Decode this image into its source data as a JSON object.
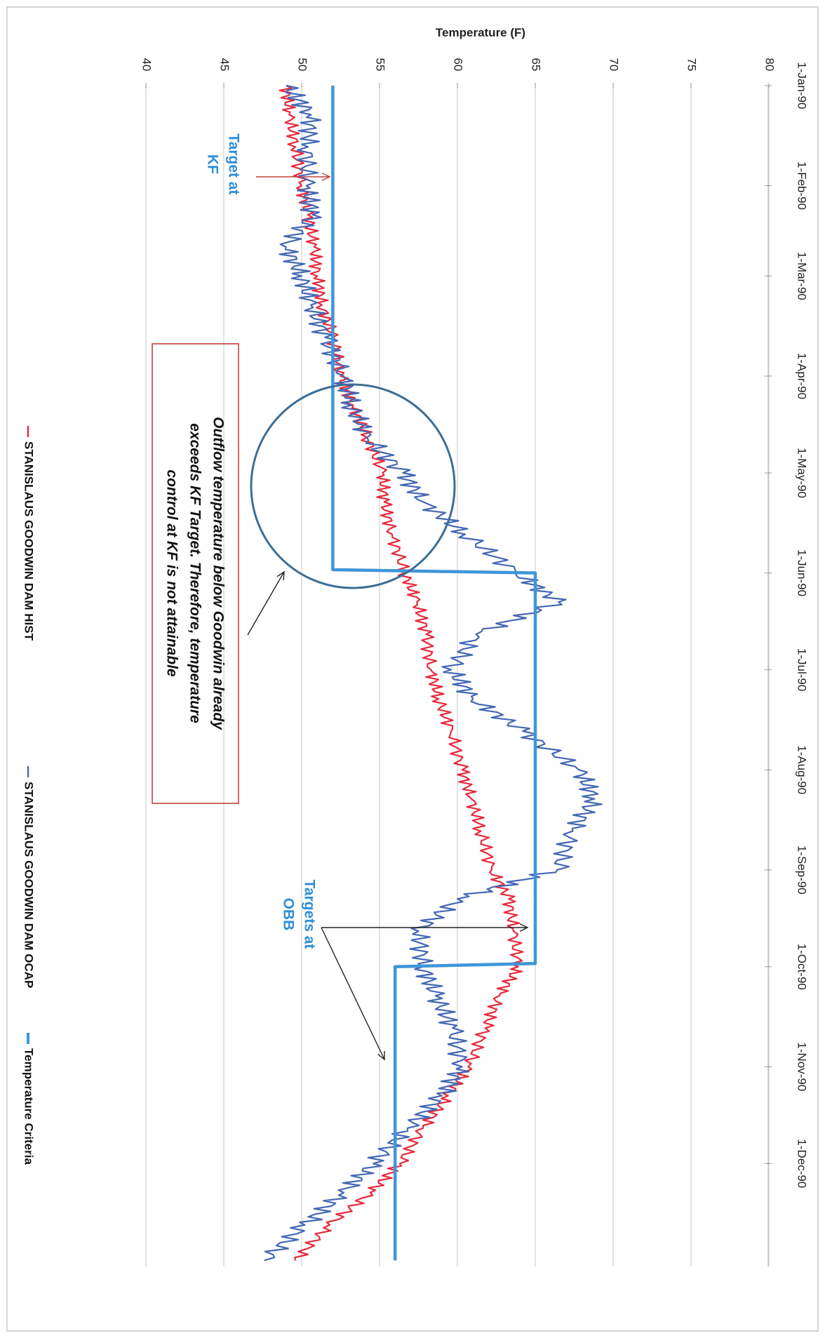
{
  "chart_data": {
    "type": "line",
    "orientation": "rotated-90-clockwise",
    "title": "",
    "ylabel": "Temperature (F)",
    "xlabel": "",
    "ylim": [
      40,
      80
    ],
    "y_ticks": [
      "40",
      "45",
      "50",
      "55",
      "60",
      "65",
      "70",
      "75",
      "80"
    ],
    "x_tick_labels": [
      "1-Jan-90",
      "1-Feb-90",
      "1-Mar-90",
      "1-Apr-90",
      "1-May-90",
      "1-Jun-90",
      "1-Jul-90",
      "1-Aug-90",
      "1-Sep-90",
      "1-Oct-90",
      "1-Nov-90",
      "1-Dec-90"
    ],
    "x_tick_dates": [
      "1990-01-01",
      "1990-02-01",
      "1990-03-01",
      "1990-04-01",
      "1990-05-01",
      "1990-06-01",
      "1990-07-01",
      "1990-08-01",
      "1990-09-01",
      "1990-10-01",
      "1990-11-01",
      "1990-12-01"
    ],
    "xlim": [
      "1990-01-01",
      "1990-12-31"
    ],
    "grid": "horizontal major gridlines",
    "legend_position": "bottom",
    "series": [
      {
        "name": "STANISLAUS GOODWIN  DAM HIST",
        "color": "#e8293d",
        "x": [
          "1990-01-01",
          "1990-01-10",
          "1990-01-20",
          "1990-02-01",
          "1990-02-10",
          "1990-02-20",
          "1990-03-01",
          "1990-03-10",
          "1990-03-20",
          "1990-04-01",
          "1990-04-10",
          "1990-04-20",
          "1990-05-01",
          "1990-05-10",
          "1990-05-20",
          "1990-06-01",
          "1990-06-10",
          "1990-06-20",
          "1990-07-01",
          "1990-07-10",
          "1990-07-20",
          "1990-08-01",
          "1990-08-10",
          "1990-08-20",
          "1990-09-01",
          "1990-09-10",
          "1990-09-20",
          "1990-10-01",
          "1990-10-10",
          "1990-10-20",
          "1990-11-01",
          "1990-11-10",
          "1990-11-20",
          "1990-12-01",
          "1990-12-10",
          "1990-12-20",
          "1990-12-31"
        ],
        "values": [
          49.0,
          49.2,
          49.6,
          50.0,
          50.4,
          50.8,
          51.0,
          51.3,
          52.0,
          52.5,
          53.3,
          54.2,
          55.2,
          55.3,
          55.8,
          56.6,
          57.4,
          58.0,
          58.3,
          58.8,
          59.6,
          60.3,
          60.9,
          61.5,
          62.2,
          63.3,
          63.6,
          63.9,
          62.7,
          61.8,
          60.7,
          59.4,
          57.8,
          56.3,
          54.4,
          51.8,
          49.6
        ]
      },
      {
        "name": "STANISLAUS GOODWIN  DAM OCAP",
        "color": "#4468b4",
        "x": [
          "1990-01-01",
          "1990-01-10",
          "1990-01-20",
          "1990-02-01",
          "1990-02-10",
          "1990-02-20",
          "1990-03-01",
          "1990-03-10",
          "1990-03-20",
          "1990-04-01",
          "1990-04-10",
          "1990-04-20",
          "1990-05-01",
          "1990-05-10",
          "1990-05-20",
          "1990-06-01",
          "1990-06-10",
          "1990-06-20",
          "1990-07-01",
          "1990-07-10",
          "1990-07-20",
          "1990-08-01",
          "1990-08-10",
          "1990-08-20",
          "1990-09-01",
          "1990-09-10",
          "1990-09-20",
          "1990-10-01",
          "1990-10-10",
          "1990-10-20",
          "1990-11-01",
          "1990-11-10",
          "1990-11-20",
          "1990-12-01",
          "1990-12-10",
          "1990-12-20",
          "1990-12-31"
        ],
        "values": [
          49.0,
          50.6,
          50.4,
          50.3,
          50.7,
          49.0,
          50.0,
          50.6,
          51.5,
          52.7,
          53.2,
          54.2,
          56.5,
          57.8,
          60.5,
          63.8,
          66.5,
          61.2,
          59.6,
          61.0,
          64.2,
          67.8,
          68.8,
          67.4,
          66.4,
          60.0,
          57.5,
          57.8,
          58.6,
          59.7,
          60.3,
          59.0,
          56.8,
          54.6,
          52.7,
          50.2,
          47.6
        ]
      },
      {
        "name": "Temperature Criteria",
        "color": "#3f96d8",
        "x": [
          "1990-01-01",
          "1990-05-31",
          "1990-06-01",
          "1990-09-30",
          "1990-10-01",
          "1990-12-31"
        ],
        "values": [
          52.0,
          52.0,
          65.0,
          65.0,
          56.0,
          56.0
        ]
      }
    ],
    "annotations": {
      "target_kf": [
        "Target at",
        "KF"
      ],
      "targets_obb": [
        "Targets at",
        "OBB"
      ],
      "box_lines": [
        "Outflow temperature below Goodwin already",
        "exceeds KF Target. Therefore, temperature",
        "control at KF is not attainable"
      ]
    }
  }
}
